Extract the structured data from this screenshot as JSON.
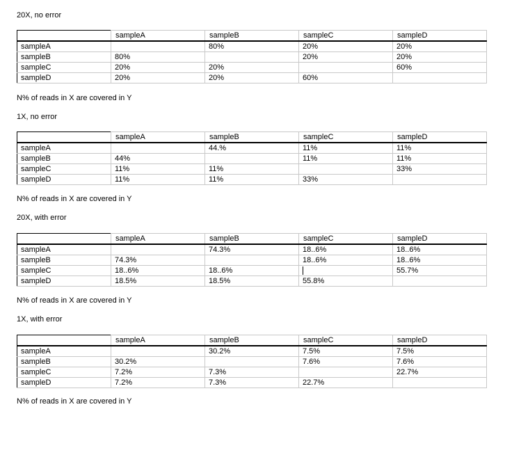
{
  "sections": [
    {
      "title": "20X, no error",
      "columns": [
        "sampleA",
        "sampleB",
        "sampleC",
        "sampleD"
      ],
      "rows": [
        {
          "label": "sampleA",
          "values": [
            "",
            "80%",
            "20%",
            "20%"
          ]
        },
        {
          "label": "sampleB",
          "values": [
            "80%",
            "",
            "20%",
            "20%"
          ]
        },
        {
          "label": "sampleC",
          "values": [
            "20%",
            "20%",
            "",
            "60%"
          ]
        },
        {
          "label": "sampleD",
          "values": [
            "20%",
            "20%",
            "60%",
            ""
          ]
        }
      ],
      "caption": "N% of reads in X  are covered in  Y"
    },
    {
      "title": "1X, no error",
      "columns": [
        "sampleA",
        "sampleB",
        "sampleC",
        "sampleD"
      ],
      "rows": [
        {
          "label": "sampleA",
          "values": [
            "",
            "44.%",
            "11%",
            "11%"
          ]
        },
        {
          "label": "sampleB",
          "values": [
            "44%",
            "",
            "11%",
            "11%"
          ]
        },
        {
          "label": "sampleC",
          "values": [
            "11%",
            "11%",
            "",
            "33%"
          ]
        },
        {
          "label": "sampleD",
          "values": [
            "11%",
            "11%",
            "33%",
            ""
          ]
        }
      ],
      "caption": "N% of reads in X  are covered in  Y"
    },
    {
      "title": "20X, with error",
      "columns": [
        "sampleA",
        "sampleB",
        "sampleC",
        "sampleD"
      ],
      "rows": [
        {
          "label": "sampleA",
          "values": [
            "",
            "74.3%",
            "18..6%",
            "18..6%"
          ]
        },
        {
          "label": "sampleB",
          "values": [
            "74.3%",
            "",
            "18..6%",
            "18..6%"
          ]
        },
        {
          "label": "sampleC",
          "values": [
            "18..6%",
            "18..6%",
            "",
            "55.7%"
          ]
        },
        {
          "label": "sampleD",
          "values": [
            "18.5%",
            "18.5%",
            "55.8%",
            ""
          ]
        }
      ],
      "caption": "N% of reads in X  are covered in  Y"
    },
    {
      "title": "1X, with error",
      "columns": [
        "sampleA",
        "sampleB",
        "sampleC",
        "sampleD"
      ],
      "rows": [
        {
          "label": "sampleA",
          "values": [
            "",
            "30.2%",
            "7.5%",
            "7.5%"
          ]
        },
        {
          "label": "sampleB",
          "values": [
            "30.2%",
            "",
            "7.6%",
            "7.6%"
          ]
        },
        {
          "label": "sampleC",
          "values": [
            "7.2%",
            "7.3%",
            "",
            "22.7%"
          ]
        },
        {
          "label": "sampleD",
          "values": [
            "7.2%",
            "7.3%",
            "22.7%",
            ""
          ]
        }
      ],
      "caption": "N% of reads in X  are covered in  Y"
    }
  ]
}
